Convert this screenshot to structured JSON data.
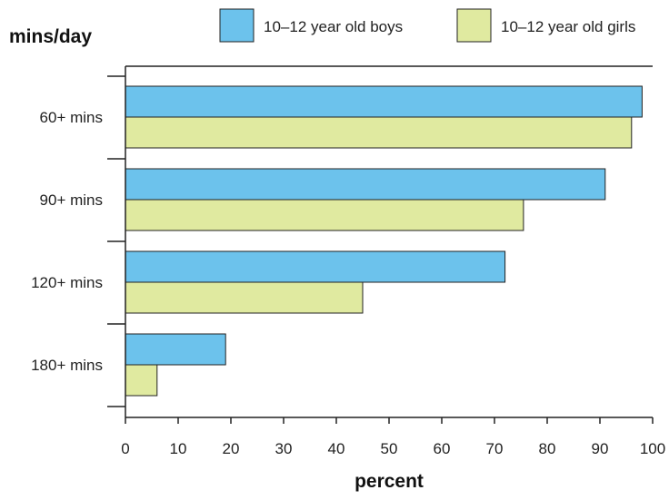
{
  "chart_data": {
    "type": "bar",
    "orientation": "horizontal",
    "categories": [
      "60+ mins",
      "90+ mins",
      "120+ mins",
      "180+ mins"
    ],
    "series": [
      {
        "name": "10–12 year old boys",
        "color": "#6cc2ec",
        "values": [
          98,
          91,
          72,
          19
        ]
      },
      {
        "name": "10–12 year old girls",
        "color": "#e0eaa0",
        "values": [
          96,
          75.5,
          45,
          6
        ]
      }
    ],
    "xlabel": "percent",
    "ylabel": "mins/day",
    "xlim": [
      0,
      100
    ],
    "xticks": [
      "0",
      "10",
      "20",
      "30",
      "40",
      "50",
      "60",
      "70",
      "80",
      "90",
      "100"
    ],
    "grid": false,
    "legend": "top"
  }
}
